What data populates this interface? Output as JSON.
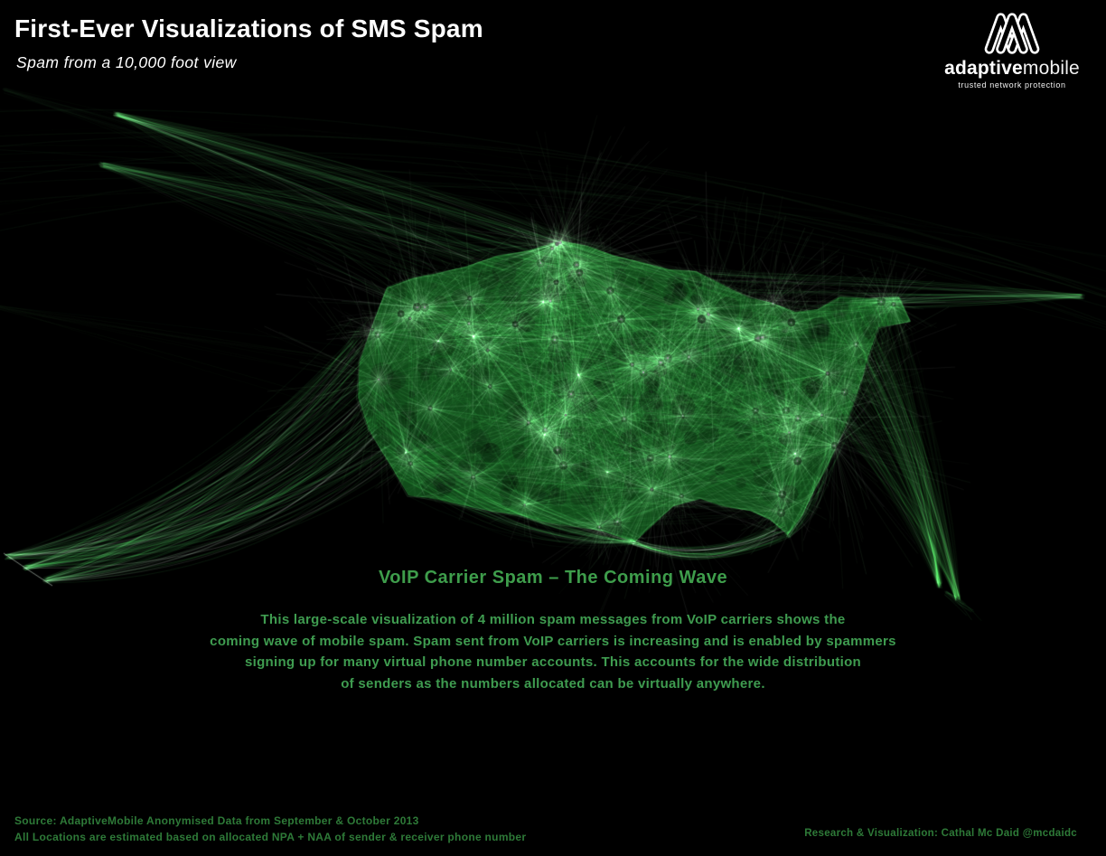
{
  "poster": {
    "title": "First-Ever Visualizations of SMS Spam",
    "subtitle": "Spam from a 10,000 foot view"
  },
  "logo": {
    "brand_bold": "adaptive",
    "brand_light": "mobile",
    "tagline": "trusted network protection"
  },
  "visualization": {
    "heading": "VoIP Carrier Spam – The Coming Wave",
    "description_lines": [
      "This large-scale visualization of 4 million spam messages from VoIP carriers shows the",
      "coming wave of mobile spam. Spam sent from VoIP carriers is increasing and is enabled by spammers",
      "signing up for many virtual phone number accounts. This accounts for the wide distribution",
      "of senders as the numbers allocated can be virtually anywhere."
    ]
  },
  "footer": {
    "source_line1": "Source: AdaptiveMobile Anonymised Data from September & October 2013",
    "source_line2": "All Locations are estimated based on allocated NPA + NAA of sender & receiver phone number",
    "credit": "Research & Visualization: Cathal Mc Daid @mcdaidc"
  },
  "colors": {
    "background": "#000000",
    "line_green": "#46be5a",
    "deep_green": "#2f9e41",
    "bright_highlight": "#e9ffe9",
    "heading_green": "#3e9d4b",
    "body_green": "#3f9c50",
    "footer_green": "#2e7a38",
    "title_white": "#ffffff"
  }
}
